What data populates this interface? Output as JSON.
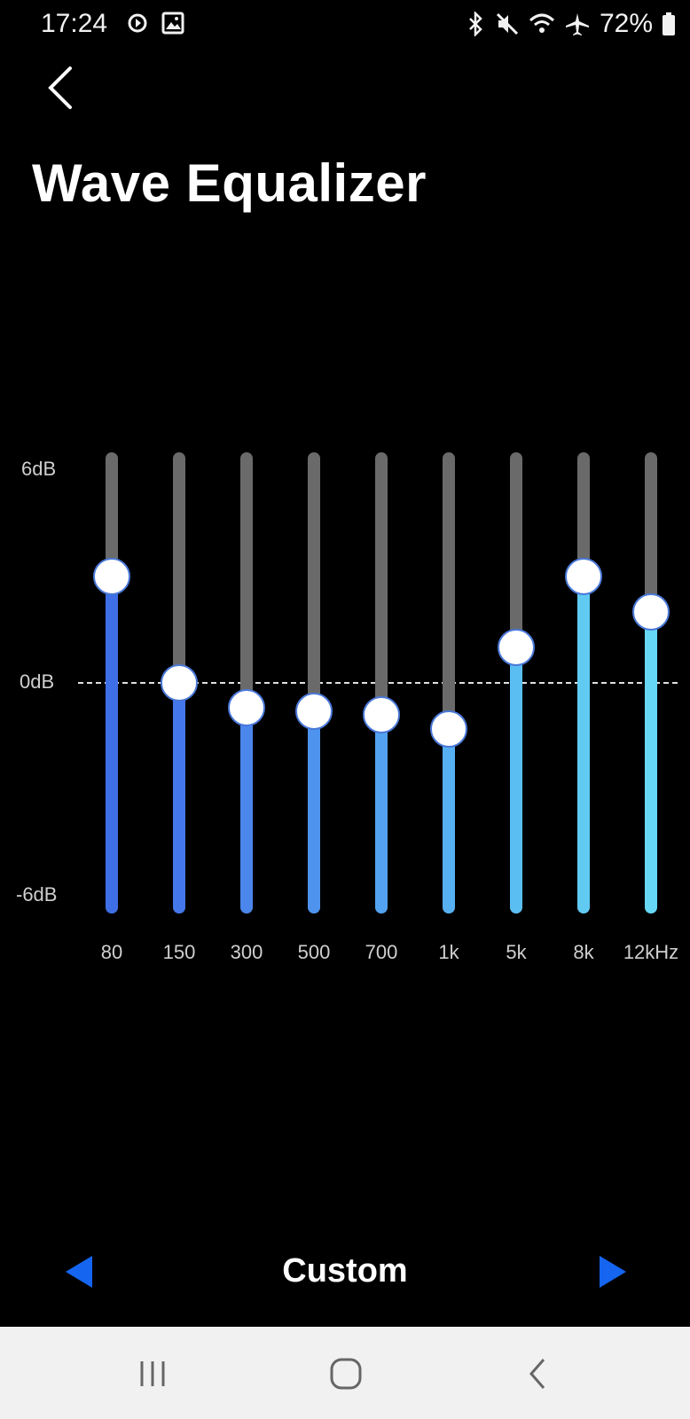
{
  "status_bar": {
    "time": "17:24",
    "battery": "72%",
    "left_icons": [
      "sync-icon",
      "image-icon"
    ],
    "right_icons": [
      "bluetooth-icon",
      "mute-icon",
      "wifi-icon",
      "airplane-icon",
      "battery-icon"
    ]
  },
  "header": {
    "title": "Wave Equalizer",
    "back_icon": "chevron-left-icon"
  },
  "equalizer": {
    "db_labels": {
      "max": "6dB",
      "zero": "0dB",
      "min": "-6dB"
    },
    "range_db": [
      -6,
      6
    ],
    "bands": [
      {
        "label": "80",
        "gain_db": 3.0,
        "color": "#3f6fe6"
      },
      {
        "label": "150",
        "gain_db": 0.0,
        "color": "#4477ea"
      },
      {
        "label": "300",
        "gain_db": -0.7,
        "color": "#4a86ec"
      },
      {
        "label": "500",
        "gain_db": -0.8,
        "color": "#4e94ee"
      },
      {
        "label": "700",
        "gain_db": -0.9,
        "color": "#52a2f0"
      },
      {
        "label": "1k",
        "gain_db": -1.3,
        "color": "#56b0f1"
      },
      {
        "label": "5k",
        "gain_db": 1.0,
        "color": "#5bbef2"
      },
      {
        "label": "8k",
        "gain_db": 3.0,
        "color": "#60caf3"
      },
      {
        "label": "12kHz",
        "gain_db": 2.0,
        "color": "#66d8f5"
      }
    ]
  },
  "preset": {
    "name": "Custom",
    "arrow_color": "#1565f0"
  }
}
